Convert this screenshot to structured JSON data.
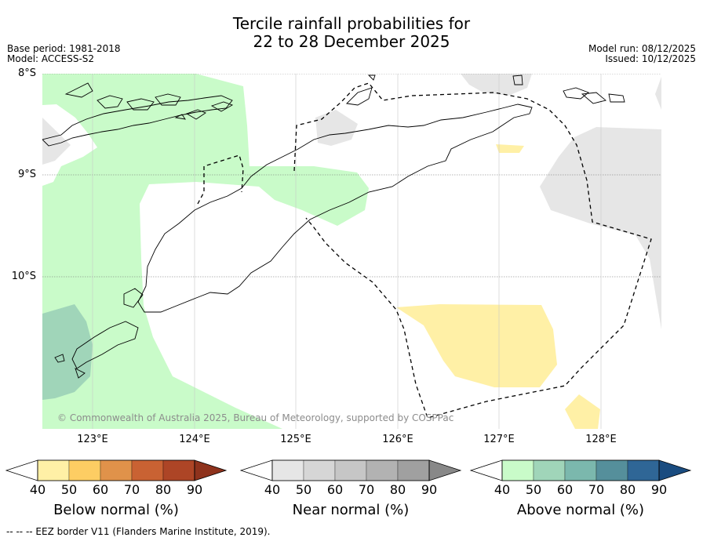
{
  "title": {
    "line1": "Tercile rainfall probabilities for",
    "line2": "22 to 28 December 2025"
  },
  "meta": {
    "base_period": "Base period: 1981-2018",
    "model": "Model: ACCESS-S2",
    "model_run": "Model run: 08/12/2025",
    "issued": "Issued: 10/12/2025"
  },
  "map": {
    "latitude_labels": [
      "8°S",
      "9°S",
      "10°S"
    ],
    "longitude_labels": [
      "123°E",
      "124°E",
      "125°E",
      "126°E",
      "127°E",
      "128°E"
    ],
    "extent": {
      "lon": [
        122.5,
        128.6
      ],
      "lat": [
        -11.5,
        -8.0
      ]
    },
    "copyright": "© Commonwealth of Australia 2025, Bureau of Meteorology, supported by COSPPac"
  },
  "colorbars": [
    {
      "title": "Below normal (%)",
      "ticks": [
        "40",
        "50",
        "60",
        "70",
        "80",
        "90"
      ],
      "colors": [
        "#fff0a6",
        "#fdcd63",
        "#e0924a",
        "#c96233",
        "#ad4526",
        "#8e321c"
      ]
    },
    {
      "title": "Near normal (%)",
      "ticks": [
        "40",
        "50",
        "60",
        "70",
        "80",
        "90"
      ],
      "colors": [
        "#e6e6e6",
        "#d6d6d6",
        "#c6c6c6",
        "#b2b2b2",
        "#a0a0a0",
        "#888888"
      ]
    },
    {
      "title": "Above normal (%)",
      "ticks": [
        "40",
        "50",
        "60",
        "70",
        "80",
        "90"
      ],
      "colors": [
        "#c9fbc9",
        "#a0d5b9",
        "#7bb8ad",
        "#558f9b",
        "#2f6696",
        "#1a4c80"
      ]
    }
  ],
  "footnote": "--  --  -- EEZ border V11 (Flanders Marine Institute, 2019)."
}
